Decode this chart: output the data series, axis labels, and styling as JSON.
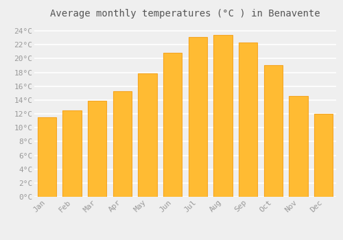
{
  "title": "Average monthly temperatures (°C ) in Benavente",
  "months": [
    "Jan",
    "Feb",
    "Mar",
    "Apr",
    "May",
    "Jun",
    "Jul",
    "Aug",
    "Sep",
    "Oct",
    "Nov",
    "Dec"
  ],
  "values": [
    11.5,
    12.5,
    13.9,
    15.3,
    17.9,
    20.8,
    23.1,
    23.4,
    22.3,
    19.0,
    14.6,
    12.0
  ],
  "bar_color": "#FFBB33",
  "bar_edge_color": "#F5A623",
  "background_color": "#EFEFEF",
  "grid_color": "#FFFFFF",
  "ylim": [
    0,
    25
  ],
  "ytick_step": 2,
  "title_fontsize": 10,
  "tick_fontsize": 8,
  "tick_color": "#999999",
  "title_color": "#555555"
}
